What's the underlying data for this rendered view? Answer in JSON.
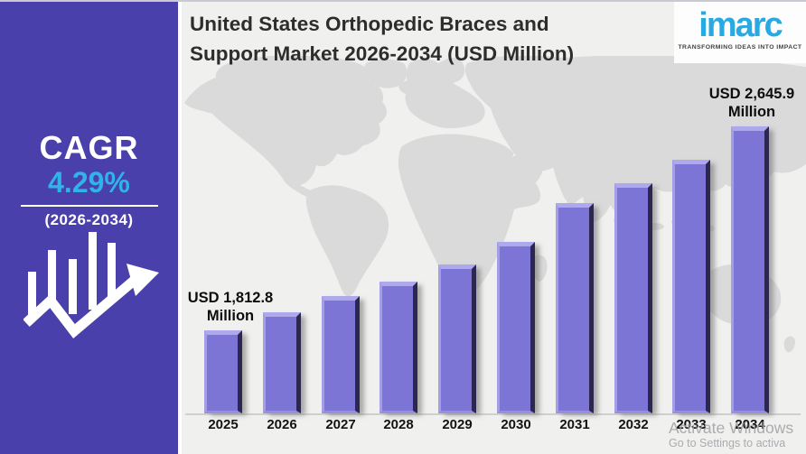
{
  "sidebar": {
    "cagr_label": "CAGR",
    "cagr_value": "4.29%",
    "cagr_period": "(2026-2034)",
    "bg_color": "#4a40ab",
    "accent_color": "#2fb3e8",
    "icon": "bar-chart-growth-arrow-icon"
  },
  "header": {
    "title_line1": "United States Orthopedic Braces and",
    "title_line2": "Support Market 2026-2034 (USD Million)",
    "logo": {
      "text": "imarc",
      "tagline": "TRANSFORMING IDEAS INTO IMPACT",
      "color": "#29a9e1"
    }
  },
  "chart_data": {
    "type": "bar",
    "title": "United States Orthopedic Braces and Support Market 2026-2034 (USD Million)",
    "unit": "USD Million",
    "categories": [
      "2025",
      "2026",
      "2027",
      "2028",
      "2029",
      "2030",
      "2031",
      "2032",
      "2033",
      "2034"
    ],
    "values": [
      1812.8,
      1886,
      1953,
      2012,
      2082,
      2174,
      2332,
      2414,
      2510,
      2645.9
    ],
    "bar_color": "#7d75d5",
    "xlabel": "",
    "ylabel": "",
    "gridlines": false,
    "legend": "none",
    "baseline_axis": true,
    "annotations": [
      {
        "index": 0,
        "line1": "USD 1,812.8",
        "line2": "Million"
      },
      {
        "index": 9,
        "line1": "USD 2,645.9",
        "line2": "Million"
      }
    ]
  },
  "watermark": {
    "line1": "Activate Windows",
    "line2": "Go to Settings to activa"
  }
}
